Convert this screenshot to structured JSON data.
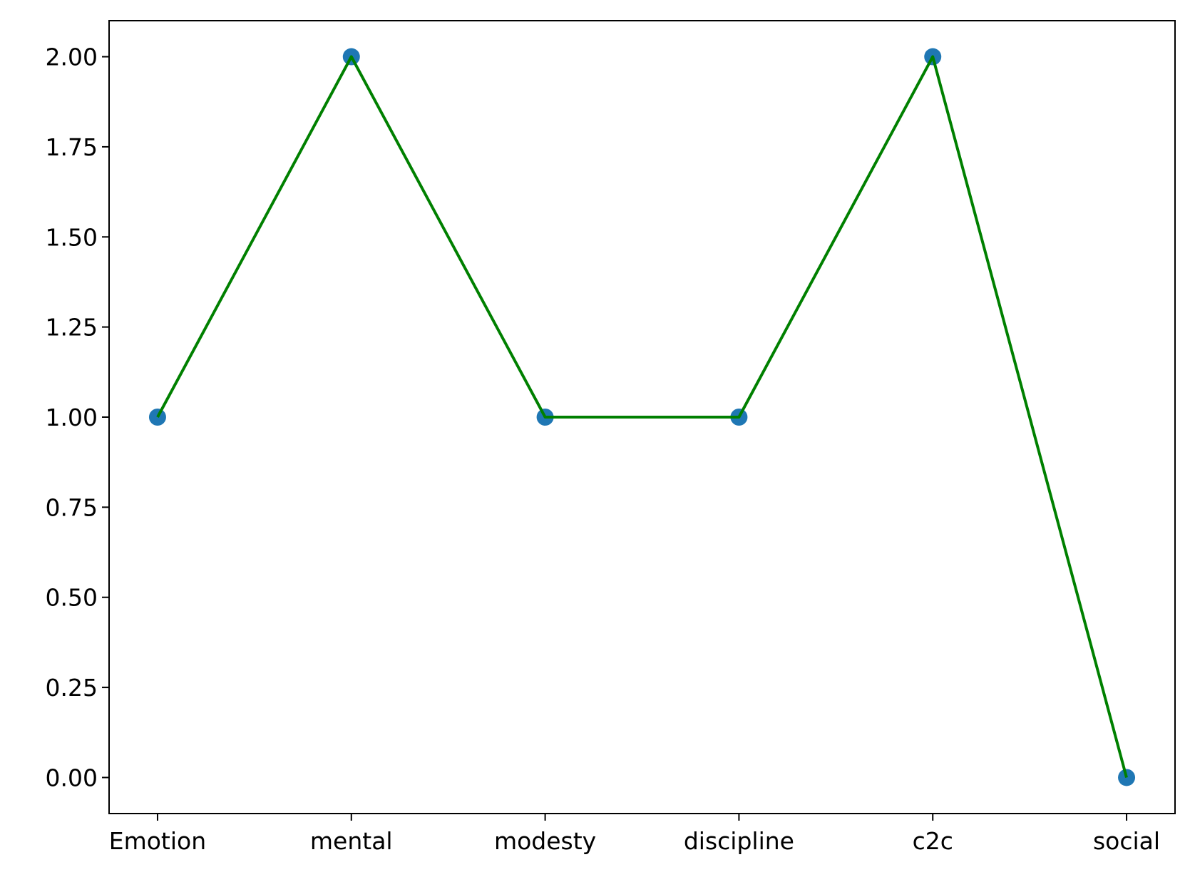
{
  "chart_data": {
    "type": "line",
    "categories": [
      "Emotion",
      "mental",
      "modesty",
      "discipline",
      "c2c",
      "social"
    ],
    "series": [
      {
        "values": [
          1,
          2,
          1,
          1,
          2,
          0
        ]
      }
    ],
    "title": "",
    "xlabel": "",
    "ylabel": "",
    "ylim": [
      -0.1,
      2.1
    ],
    "yticks": [
      "0.00",
      "0.25",
      "0.50",
      "0.75",
      "1.00",
      "1.25",
      "1.50",
      "1.75",
      "2.00"
    ],
    "grid": false,
    "line_color": "#008000",
    "marker_color": "#1f77b4"
  }
}
